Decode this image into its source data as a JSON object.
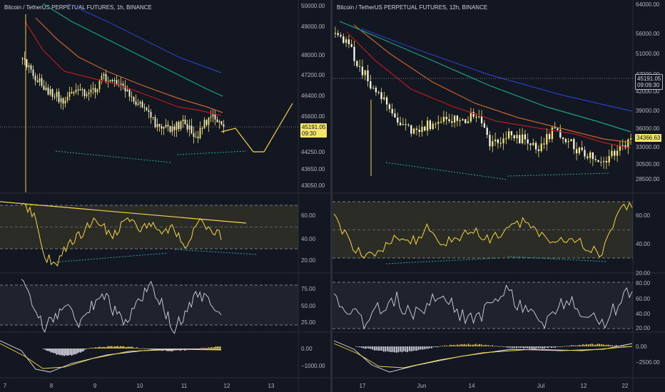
{
  "left": {
    "title": "Bitcoin / TetherUS PERPETUAL FUTURES, 1h, BINANCE",
    "price_ticks": [
      "50000.00",
      "49000.00",
      "48000.00",
      "47200.00",
      "46400.00",
      "45600.00",
      "44250.00",
      "43650.00",
      "43050.00"
    ],
    "price_tag": [
      "45191.05",
      "09:30"
    ],
    "rsi_ticks": [
      "60.00",
      "40.00",
      "20.00"
    ],
    "stoch_ticks": [
      "75.00",
      "50.00",
      "25.00"
    ],
    "macd_ticks": [
      "0.00",
      "−1000.00"
    ],
    "time_ticks": [
      "7",
      "8",
      "9",
      "10",
      "11",
      "12",
      "13"
    ]
  },
  "right": {
    "title": "Bitcoin / TetherUS PERPETUAL FUTURES, 12h, BINANCE",
    "price_ticks": [
      "64000.00",
      "56000.00",
      "51000.00",
      "47000.00",
      "42000.00",
      "39000.00",
      "36000.00",
      "33000.00",
      "30500.00",
      "28500.00"
    ],
    "price_tag": [
      "45191.05",
      "09:09:30"
    ],
    "last_tag": "34366.63",
    "rsi_ticks": [
      "60.00",
      "40.00",
      "20.00"
    ],
    "stoch_ticks": [
      "80.00",
      "60.00",
      "40.00",
      "20.00"
    ],
    "macd_ticks": [
      "0.00",
      "−2500.00"
    ],
    "time_ticks": [
      "17",
      "Jun",
      "14",
      "Jul",
      "12",
      "22"
    ]
  },
  "colors": {
    "bg": "#131722",
    "candle": "#f5e56b",
    "ma_red": "#b71c1c",
    "ma_orange": "#c7652a",
    "ma_teal": "#1aa187",
    "ma_blue": "#2a3dbf",
    "drawing": "#f5d442",
    "divergence": "#26a69a"
  }
}
